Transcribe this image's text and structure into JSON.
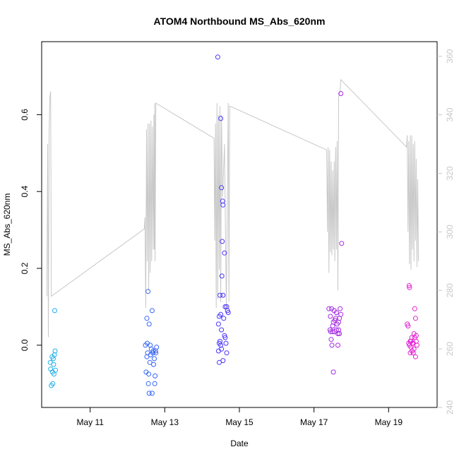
{
  "chart_data": {
    "type": "scatter",
    "title": "ATOM4 Northbound MS_Abs_620nm",
    "xlabel": "Date",
    "ylabel": "MS_Abs_620nm",
    "x_ticks": [
      {
        "day": 11,
        "label": "May 11"
      },
      {
        "day": 13,
        "label": "May 13"
      },
      {
        "day": 15,
        "label": "May 15"
      },
      {
        "day": 17,
        "label": "May 17"
      },
      {
        "day": 19,
        "label": "May 19"
      }
    ],
    "xlim_days": [
      9.7,
      20.3
    ],
    "ylim": [
      -0.162,
      0.79
    ],
    "y_ticks": [
      0.0,
      0.2,
      0.4,
      0.6
    ],
    "y_tick_labels": [
      "0.0",
      "0.2",
      "0.4",
      "0.6"
    ],
    "y2lim": [
      240,
      365
    ],
    "y2_ticks": [
      240,
      260,
      280,
      300,
      320,
      340,
      360
    ],
    "y2_tick_labels": [
      "240",
      "260",
      "280",
      "300",
      "320",
      "340",
      "360"
    ],
    "grid": false,
    "colors": {
      "line": "#c8c8c8",
      "axis": "#000000",
      "right_axis": "#c8c8c8",
      "gradient_start": "#1fb2e8",
      "gradient_mid": "#4436ff",
      "gradient_end": "#e820d0"
    },
    "series": [
      {
        "kind": "points",
        "points": [
          [
            9.94,
            -0.062
          ],
          [
            9.96,
            -0.105
          ],
          [
            9.98,
            -0.03
          ],
          [
            9.99,
            -0.07
          ],
          [
            10.0,
            -0.1
          ],
          [
            10.01,
            -0.035
          ],
          [
            10.02,
            -0.05
          ],
          [
            10.03,
            -0.075
          ],
          [
            10.04,
            -0.025
          ],
          [
            10.06,
            -0.015
          ],
          [
            10.07,
            -0.065
          ],
          [
            10.05,
            0.09
          ],
          [
            9.93,
            -0.045
          ],
          [
            12.48,
            -0.0
          ],
          [
            12.5,
            -0.07
          ],
          [
            12.52,
            -0.03
          ],
          [
            12.54,
            -0.02
          ],
          [
            12.56,
            -0.1
          ],
          [
            12.57,
            -0.075
          ],
          [
            12.58,
            -0.125
          ],
          [
            12.6,
            -0.045
          ],
          [
            12.62,
            -0.025
          ],
          [
            12.64,
            -0.01
          ],
          [
            12.66,
            -0.125
          ],
          [
            12.68,
            -0.02
          ],
          [
            12.7,
            -0.05
          ],
          [
            12.72,
            -0.035
          ],
          [
            12.73,
            -0.1
          ],
          [
            12.74,
            -0.08
          ],
          [
            12.75,
            -0.015
          ],
          [
            12.76,
            -0.02
          ],
          [
            12.78,
            -0.005
          ],
          [
            12.52,
            0.07
          ],
          [
            12.55,
            0.14
          ],
          [
            12.58,
            0.055
          ],
          [
            12.66,
            0.09
          ],
          [
            12.53,
            0.005
          ],
          [
            12.61,
            0.0
          ],
          [
            12.69,
            -0.015
          ],
          [
            14.42,
            0.75
          ],
          [
            14.5,
            0.59
          ],
          [
            14.52,
            0.41
          ],
          [
            14.55,
            0.375
          ],
          [
            14.56,
            0.365
          ],
          [
            14.6,
            0.24
          ],
          [
            14.54,
            0.27
          ],
          [
            14.53,
            0.18
          ],
          [
            14.48,
            0.13
          ],
          [
            14.56,
            0.13
          ],
          [
            14.66,
            0.1
          ],
          [
            14.68,
            0.09
          ],
          [
            14.62,
            0.1
          ],
          [
            14.44,
            0.055
          ],
          [
            14.46,
            0.075
          ],
          [
            14.5,
            0.08
          ],
          [
            14.52,
            0.04
          ],
          [
            14.58,
            0.07
          ],
          [
            14.6,
            0.025
          ],
          [
            14.62,
            0.02
          ],
          [
            14.64,
            0.005
          ],
          [
            14.66,
            -0.02
          ],
          [
            14.7,
            0.085
          ],
          [
            14.44,
            -0.015
          ],
          [
            14.46,
            0.005
          ],
          [
            14.48,
            0.01
          ],
          [
            14.5,
            0.0
          ],
          [
            14.52,
            -0.01
          ],
          [
            14.56,
            -0.04
          ],
          [
            14.46,
            -0.045
          ],
          [
            17.4,
            0.095
          ],
          [
            17.43,
            0.04
          ],
          [
            17.45,
            0.035
          ],
          [
            17.46,
            0.015
          ],
          [
            17.48,
            0.0
          ],
          [
            17.5,
            0.035
          ],
          [
            17.52,
            0.06
          ],
          [
            17.54,
            0.09
          ],
          [
            17.56,
            0.065
          ],
          [
            17.58,
            0.07
          ],
          [
            17.6,
            0.04
          ],
          [
            17.62,
            0.055
          ],
          [
            17.64,
            0.03
          ],
          [
            17.66,
            0.06
          ],
          [
            17.68,
            0.07
          ],
          [
            17.7,
            0.095
          ],
          [
            17.72,
            0.08
          ],
          [
            17.44,
            0.075
          ],
          [
            17.47,
            0.095
          ],
          [
            17.5,
            0.05
          ],
          [
            17.56,
            0.035
          ],
          [
            17.6,
            0.085
          ],
          [
            17.64,
            0.0
          ],
          [
            17.66,
            0.04
          ],
          [
            17.68,
            0.03
          ],
          [
            17.74,
            0.265
          ],
          [
            17.72,
            0.655
          ],
          [
            17.52,
            -0.07
          ],
          [
            19.55,
            0.155
          ],
          [
            19.56,
            0.15
          ],
          [
            19.5,
            0.055
          ],
          [
            19.52,
            0.05
          ],
          [
            19.54,
            0.005
          ],
          [
            19.56,
            0.0
          ],
          [
            19.58,
            -0.02
          ],
          [
            19.6,
            0.01
          ],
          [
            19.62,
            0.02
          ],
          [
            19.64,
            0.005
          ],
          [
            19.66,
            0.005
          ],
          [
            19.68,
            0.03
          ],
          [
            19.7,
            0.02
          ],
          [
            19.72,
            -0.03
          ],
          [
            19.74,
            0.01
          ],
          [
            19.76,
            0.0
          ],
          [
            19.6,
            -0.005
          ],
          [
            19.63,
            -0.015
          ],
          [
            19.7,
            0.095
          ],
          [
            19.72,
            0.07
          ],
          [
            19.74,
            0.025
          ],
          [
            19.58,
            0.01
          ],
          [
            19.66,
            -0.02
          ],
          [
            19.68,
            -0.01
          ]
        ]
      },
      {
        "kind": "line",
        "axis": "right",
        "points": [
          [
            9.84,
            278
          ],
          [
            9.86,
            330
          ],
          [
            9.88,
            264
          ],
          [
            9.9,
            335
          ],
          [
            9.92,
            346
          ],
          [
            9.94,
            348
          ],
          [
            9.96,
            278
          ],
          [
            12.45,
            301
          ],
          [
            12.47,
            305
          ],
          [
            12.49,
            274
          ],
          [
            12.51,
            335
          ],
          [
            12.53,
            290
          ],
          [
            12.55,
            337
          ],
          [
            12.57,
            280
          ],
          [
            12.59,
            337
          ],
          [
            12.61,
            286
          ],
          [
            12.63,
            338
          ],
          [
            12.65,
            290
          ],
          [
            12.67,
            336
          ],
          [
            12.69,
            294
          ],
          [
            12.71,
            340
          ],
          [
            12.72,
            294
          ],
          [
            12.73,
            344
          ],
          [
            12.74,
            290
          ],
          [
            12.76,
            344
          ],
          [
            14.32,
            332
          ],
          [
            14.34,
            297
          ],
          [
            14.36,
            337
          ],
          [
            14.38,
            274
          ],
          [
            14.4,
            344
          ],
          [
            14.42,
            277
          ],
          [
            14.44,
            340
          ],
          [
            14.46,
            287
          ],
          [
            14.48,
            343
          ],
          [
            14.5,
            276
          ],
          [
            14.52,
            340
          ],
          [
            14.55,
            312
          ],
          [
            14.6,
            330
          ],
          [
            14.65,
            274
          ],
          [
            14.7,
            344
          ],
          [
            14.72,
            276
          ],
          [
            14.74,
            343
          ],
          [
            17.34,
            328
          ],
          [
            17.36,
            300
          ],
          [
            17.38,
            329
          ],
          [
            17.4,
            286
          ],
          [
            17.42,
            328
          ],
          [
            17.44,
            293
          ],
          [
            17.46,
            324
          ],
          [
            17.48,
            292
          ],
          [
            17.5,
            321
          ],
          [
            17.52,
            294
          ],
          [
            17.54,
            324
          ],
          [
            17.56,
            290
          ],
          [
            17.58,
            329
          ],
          [
            17.6,
            294
          ],
          [
            17.62,
            331
          ],
          [
            17.64,
            280
          ],
          [
            17.66,
            346
          ],
          [
            17.68,
            347
          ],
          [
            17.7,
            348
          ],
          [
            17.72,
            352
          ],
          [
            19.48,
            329
          ],
          [
            19.5,
            333
          ],
          [
            19.52,
            300
          ],
          [
            19.54,
            331
          ],
          [
            19.56,
            289
          ],
          [
            19.58,
            333
          ],
          [
            19.6,
            287
          ],
          [
            19.62,
            333
          ],
          [
            19.64,
            294
          ],
          [
            19.66,
            330
          ],
          [
            19.68,
            290
          ],
          [
            19.7,
            331
          ],
          [
            19.72,
            297
          ],
          [
            19.74,
            325
          ],
          [
            19.76,
            288
          ],
          [
            19.78,
            318
          ],
          [
            19.8,
            290
          ]
        ]
      }
    ]
  }
}
